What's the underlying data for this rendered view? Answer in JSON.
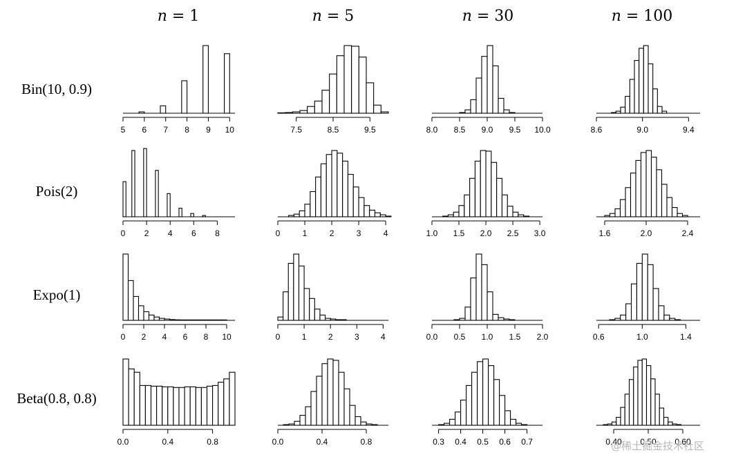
{
  "watermark": "@稀土掘金技术社区",
  "chart_data": {
    "type": "bar",
    "layout": "grid-histograms",
    "columns": [
      {
        "var": "n",
        "eq": " = ",
        "value": "1"
      },
      {
        "var": "n",
        "eq": " = ",
        "value": "5"
      },
      {
        "var": "n",
        "eq": " = ",
        "value": "30"
      },
      {
        "var": "n",
        "eq": " = ",
        "value": "100"
      }
    ],
    "rows": [
      {
        "label": "Bin(10, 0.9)",
        "panels": [
          {
            "xlim": [
              5,
              10.25
            ],
            "ticks": [
              5,
              6,
              7,
              8,
              9,
              10
            ],
            "tick_labels": [
              "5",
              "6",
              "7",
              "8",
              "9",
              "10"
            ],
            "bins": [
              [
                5.75,
                6.0,
                0.02
              ],
              [
                6.75,
                7.0,
                0.11
              ],
              [
                7.75,
                8.0,
                0.48
              ],
              [
                8.75,
                9.0,
                1.0
              ],
              [
                9.75,
                10.0,
                0.88
              ]
            ]
          },
          {
            "xlim": [
              7.0,
              10.0
            ],
            "ticks": [
              7.5,
              8.5,
              9.5
            ],
            "tick_labels": [
              "7.5",
              "8.5",
              "9.5"
            ],
            "start": 7.0,
            "width": 0.2,
            "heights": [
              0.005,
              0.01,
              0.02,
              0.04,
              0.1,
              0.18,
              0.34,
              0.58,
              0.85,
              1.0,
              0.99,
              0.83,
              0.45,
              0.12,
              0.02
            ]
          },
          {
            "xlim": [
              8.0,
              10.0
            ],
            "ticks": [
              8.0,
              8.5,
              9.0,
              9.5,
              10.0
            ],
            "tick_labels": [
              "8.0",
              "8.5",
              "9.0",
              "9.5",
              "10.0"
            ],
            "start": 8.5,
            "width": 0.1,
            "heights": [
              0.01,
              0.05,
              0.2,
              0.52,
              0.84,
              1.0,
              0.7,
              0.22,
              0.05,
              0.01
            ]
          },
          {
            "xlim": [
              8.6,
              9.5
            ],
            "ticks": [
              8.6,
              9.0,
              9.4
            ],
            "tick_labels": [
              "8.6",
              "9.0",
              "9.4"
            ],
            "start": 8.73,
            "width": 0.04,
            "heights": [
              0.01,
              0.03,
              0.09,
              0.25,
              0.5,
              0.78,
              0.96,
              1.0,
              0.73,
              0.36,
              0.1,
              0.03
            ]
          }
        ]
      },
      {
        "label": "Pois(2)",
        "panels": [
          {
            "xlim": [
              0,
              9.5
            ],
            "ticks": [
              0,
              2,
              4,
              6,
              8
            ],
            "tick_labels": [
              "0",
              "2",
              "4",
              "6",
              "8"
            ],
            "bins": [
              [
                0.0,
                0.25,
                0.53
              ],
              [
                0.75,
                1.0,
                1.0
              ],
              [
                1.75,
                2.0,
                1.03
              ],
              [
                2.75,
                3.0,
                0.7
              ],
              [
                3.75,
                4.0,
                0.35
              ],
              [
                4.75,
                5.0,
                0.13
              ],
              [
                5.75,
                6.0,
                0.05
              ],
              [
                6.75,
                7.0,
                0.02
              ]
            ]
          },
          {
            "xlim": [
              0,
              4.1
            ],
            "ticks": [
              0,
              1,
              2,
              3,
              4
            ],
            "tick_labels": [
              "0",
              "1",
              "2",
              "3",
              "4"
            ],
            "start": 0.4,
            "width": 0.2,
            "heights": [
              0.02,
              0.04,
              0.09,
              0.19,
              0.38,
              0.6,
              0.8,
              0.94,
              1.0,
              0.96,
              0.84,
              0.64,
              0.45,
              0.29,
              0.17,
              0.1,
              0.06,
              0.03,
              0.01
            ]
          },
          {
            "xlim": [
              1.0,
              3.05
            ],
            "ticks": [
              1.0,
              1.5,
              2.0,
              2.5,
              3.0
            ],
            "tick_labels": [
              "1.0",
              "1.5",
              "2.0",
              "2.5",
              "3.0"
            ],
            "start": 1.2,
            "width": 0.1,
            "heights": [
              0.01,
              0.03,
              0.07,
              0.17,
              0.33,
              0.58,
              0.84,
              1.0,
              0.99,
              0.82,
              0.58,
              0.33,
              0.16,
              0.07,
              0.03,
              0.01
            ]
          },
          {
            "xlim": [
              1.52,
              2.52
            ],
            "ticks": [
              1.6,
              2.0,
              2.4
            ],
            "tick_labels": [
              "1.6",
              "2.0",
              "2.4"
            ],
            "start": 1.6,
            "width": 0.05,
            "heights": [
              0.02,
              0.05,
              0.12,
              0.26,
              0.44,
              0.66,
              0.85,
              0.97,
              1.0,
              0.9,
              0.71,
              0.49,
              0.29,
              0.14,
              0.05,
              0.02
            ]
          }
        ]
      },
      {
        "label": "Expo(1)",
        "panels": [
          {
            "xlim": [
              0,
              10.8
            ],
            "ticks": [
              0,
              2,
              4,
              6,
              8,
              10
            ],
            "tick_labels": [
              "0",
              "2",
              "4",
              "6",
              "8",
              "10"
            ],
            "start": 0,
            "width": 0.5,
            "heights": [
              1.0,
              0.6,
              0.36,
              0.22,
              0.13,
              0.08,
              0.05,
              0.03,
              0.02,
              0.012,
              0.008,
              0.005,
              0.003,
              0.002,
              0.002,
              0.001,
              0.001,
              0.001,
              0.001,
              0.001
            ]
          },
          {
            "xlim": [
              0,
              4.2
            ],
            "ticks": [
              0,
              1,
              2,
              3,
              4
            ],
            "tick_labels": [
              "0",
              "1",
              "2",
              "3",
              "4"
            ],
            "start": 0,
            "width": 0.2,
            "heights": [
              0.05,
              0.43,
              0.86,
              1.0,
              0.82,
              0.48,
              0.33,
              0.17,
              0.08,
              0.03,
              0.02,
              0.01,
              0.01
            ]
          },
          {
            "xlim": [
              0,
              2.0
            ],
            "ticks": [
              0.0,
              0.5,
              1.0,
              1.5,
              2.0
            ],
            "tick_labels": [
              "0.0",
              "0.5",
              "1.0",
              "1.5",
              "2.0"
            ],
            "start": 0.4,
            "width": 0.1,
            "heights": [
              0.01,
              0.03,
              0.2,
              0.64,
              1.0,
              0.84,
              0.43,
              0.09,
              0.04,
              0.02,
              0.01
            ]
          },
          {
            "xlim": [
              0.58,
              1.53
            ],
            "ticks": [
              0.6,
              1.0,
              1.4
            ],
            "tick_labels": [
              "0.6",
              "1.0",
              "1.4"
            ],
            "start": 0.7,
            "width": 0.05,
            "heights": [
              0.01,
              0.03,
              0.08,
              0.25,
              0.55,
              0.86,
              1.0,
              0.84,
              0.48,
              0.22,
              0.08,
              0.03,
              0.01
            ]
          }
        ]
      },
      {
        "label": "Beta(0.8, 0.8)",
        "panels": [
          {
            "xlim": [
              0,
              1.0
            ],
            "ticks": [
              0.0,
              0.4,
              0.8
            ],
            "tick_labels": [
              "0.0",
              "0.4",
              "0.8"
            ],
            "start": 0,
            "width": 0.05,
            "heights": [
              1.0,
              0.85,
              0.8,
              0.6,
              0.6,
              0.59,
              0.59,
              0.58,
              0.58,
              0.57,
              0.57,
              0.58,
              0.58,
              0.57,
              0.57,
              0.59,
              0.6,
              0.65,
              0.7,
              0.8
            ]
          },
          {
            "xlim": [
              0,
              1.0
            ],
            "ticks": [
              0.0,
              0.4,
              0.8
            ],
            "tick_labels": [
              "0.0",
              "0.4",
              "0.8"
            ],
            "start": 0.05,
            "width": 0.05,
            "heights": [
              0.01,
              0.02,
              0.06,
              0.15,
              0.28,
              0.51,
              0.74,
              0.93,
              1.0,
              0.98,
              0.8,
              0.55,
              0.3,
              0.13,
              0.05,
              0.02,
              0.01
            ]
          },
          {
            "xlim": [
              0.27,
              0.77
            ],
            "ticks": [
              0.3,
              0.4,
              0.5,
              0.6,
              0.7
            ],
            "tick_labels": [
              "0.3",
              "0.4",
              "0.5",
              "0.6",
              "0.7"
            ],
            "start": 0.3,
            "width": 0.025,
            "heights": [
              0.01,
              0.03,
              0.09,
              0.2,
              0.38,
              0.6,
              0.8,
              0.96,
              1.0,
              0.9,
              0.69,
              0.45,
              0.22,
              0.09,
              0.03,
              0.01
            ]
          },
          {
            "xlim": [
              0.35,
              0.65
            ],
            "ticks": [
              0.4,
              0.5,
              0.6
            ],
            "tick_labels": [
              "0.40",
              "0.50",
              "0.60"
            ],
            "start": 0.37,
            "width": 0.0125,
            "heights": [
              0.01,
              0.02,
              0.05,
              0.12,
              0.27,
              0.47,
              0.69,
              0.88,
              0.98,
              1.0,
              0.9,
              0.7,
              0.47,
              0.26,
              0.12,
              0.05,
              0.02,
              0.01
            ]
          }
        ]
      }
    ]
  }
}
